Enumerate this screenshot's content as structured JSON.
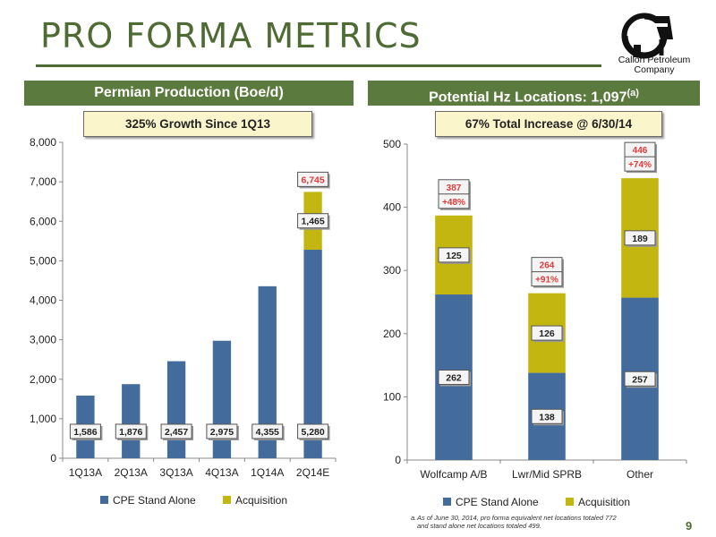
{
  "page_title": "PRO FORMA METRICS",
  "page_number": "9",
  "logo": {
    "line1": "Callon Petroleum",
    "line2": "Company"
  },
  "colors": {
    "stand_alone": "#436c9c",
    "acquisition": "#c3b611",
    "green": "#5b7a3d",
    "total_label": "#e03a3a"
  },
  "panels": {
    "left": {
      "header": "Permian Production (Boe/d)",
      "callout": "325% Growth Since 1Q13"
    },
    "right": {
      "header_text": "Potential Hz Locations: 1,097",
      "header_sup": "(a)",
      "callout": "67% Total Increase @ 6/30/14"
    }
  },
  "footnote": {
    "mark": "a.",
    "line1": "As of June 30, 2014, pro forma equivalent net locations totaled 772",
    "line2": "and stand alone net locations totaled 499."
  },
  "chart_data": [
    {
      "type": "bar",
      "stacked": true,
      "categories": [
        "1Q13A",
        "2Q13A",
        "3Q13A",
        "4Q13A",
        "1Q14A",
        "2Q14E"
      ],
      "series": [
        {
          "name": "CPE Stand Alone",
          "values": [
            1586,
            1876,
            2457,
            2975,
            4355,
            5280
          ]
        },
        {
          "name": "Acquisition",
          "values": [
            0,
            0,
            0,
            0,
            0,
            1465
          ]
        }
      ],
      "data_labels": {
        "stand_alone": [
          "1,586",
          "1,876",
          "2,457",
          "2,975",
          "4,355",
          "5,280"
        ],
        "acquisition": [
          "",
          "",
          "",
          "",
          "",
          "1,465"
        ],
        "total": [
          "",
          "",
          "",
          "",
          "",
          "6,745"
        ]
      },
      "yticks": [
        "0",
        "1,000",
        "2,000",
        "3,000",
        "4,000",
        "5,000",
        "6,000",
        "7,000",
        "8,000"
      ],
      "ylim": [
        0,
        8000
      ],
      "legend": [
        "CPE Stand Alone",
        "Acquisition"
      ],
      "legend_position": "bottom"
    },
    {
      "type": "bar",
      "stacked": true,
      "categories": [
        "Wolfcamp A/B",
        "Lwr/Mid SPRB",
        "Other"
      ],
      "series": [
        {
          "name": "CPE Stand Alone",
          "values": [
            262,
            138,
            257
          ]
        },
        {
          "name": "Acquisition",
          "values": [
            125,
            126,
            189
          ]
        }
      ],
      "data_labels": {
        "stand_alone": [
          "262",
          "138",
          "257"
        ],
        "acquisition": [
          "125",
          "126",
          "189"
        ],
        "total": [
          "387",
          "264",
          "446"
        ],
        "increase": [
          "+48%",
          "+91%",
          "+74%"
        ]
      },
      "yticks": [
        "0",
        "100",
        "200",
        "300",
        "400",
        "500"
      ],
      "ylim": [
        0,
        500
      ],
      "legend": [
        "CPE Stand Alone",
        "Acquisition"
      ],
      "legend_position": "bottom"
    }
  ]
}
